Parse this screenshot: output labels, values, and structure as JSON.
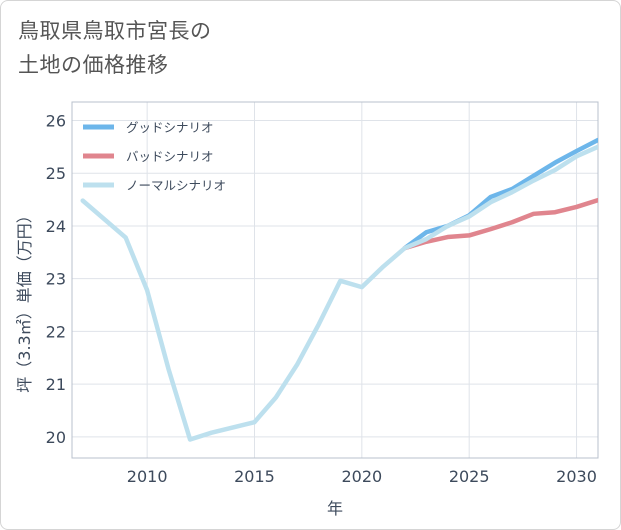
{
  "title": {
    "line1": "鳥取県鳥取市宮長の",
    "line2": "土地の価格推移"
  },
  "chart_data": {
    "type": "line",
    "xlabel": "年",
    "ylabel": "坪（3.3㎡）単価（万円）",
    "xlim": [
      2006.5,
      2031
    ],
    "ylim": [
      19.6,
      26.35
    ],
    "xticks": [
      2010,
      2015,
      2020,
      2025,
      2030
    ],
    "yticks": [
      20,
      21,
      22,
      23,
      24,
      25,
      26
    ],
    "grid": true,
    "legend_position": "top-left",
    "colors": {
      "good": "#6db6ea",
      "bad": "#e0858e",
      "normal": "#bde0ee",
      "grid": "#dfe3e9",
      "axis": "#3d4a5c"
    },
    "series": [
      {
        "name": "グッドシナリオ",
        "key": "good",
        "x": [
          2022,
          2023,
          2024,
          2025,
          2026,
          2027,
          2028,
          2029,
          2030,
          2031
        ],
        "y": [
          23.58,
          23.88,
          24.0,
          24.2,
          24.55,
          24.7,
          24.95,
          25.2,
          25.42,
          25.63
        ]
      },
      {
        "name": "バッドシナリオ",
        "key": "bad",
        "x": [
          2022,
          2023,
          2024,
          2025,
          2026,
          2027,
          2028,
          2029,
          2030,
          2031
        ],
        "y": [
          23.58,
          23.7,
          23.79,
          23.82,
          23.94,
          24.07,
          24.23,
          24.26,
          24.36,
          24.49
        ]
      },
      {
        "name": "ノーマルシナリオ",
        "key": "normal",
        "x": [
          2007,
          2009,
          2010,
          2011,
          2012,
          2013,
          2014,
          2015,
          2016,
          2017,
          2018,
          2019,
          2020,
          2021,
          2022,
          2023,
          2024,
          2025,
          2026,
          2027,
          2028,
          2029,
          2030,
          2031
        ],
        "y": [
          24.48,
          23.78,
          22.78,
          21.28,
          19.95,
          20.08,
          20.18,
          20.28,
          20.75,
          21.38,
          22.14,
          22.96,
          22.84,
          23.23,
          23.58,
          23.75,
          24.0,
          24.18,
          24.45,
          24.64,
          24.86,
          25.06,
          25.32,
          25.5
        ]
      }
    ]
  }
}
